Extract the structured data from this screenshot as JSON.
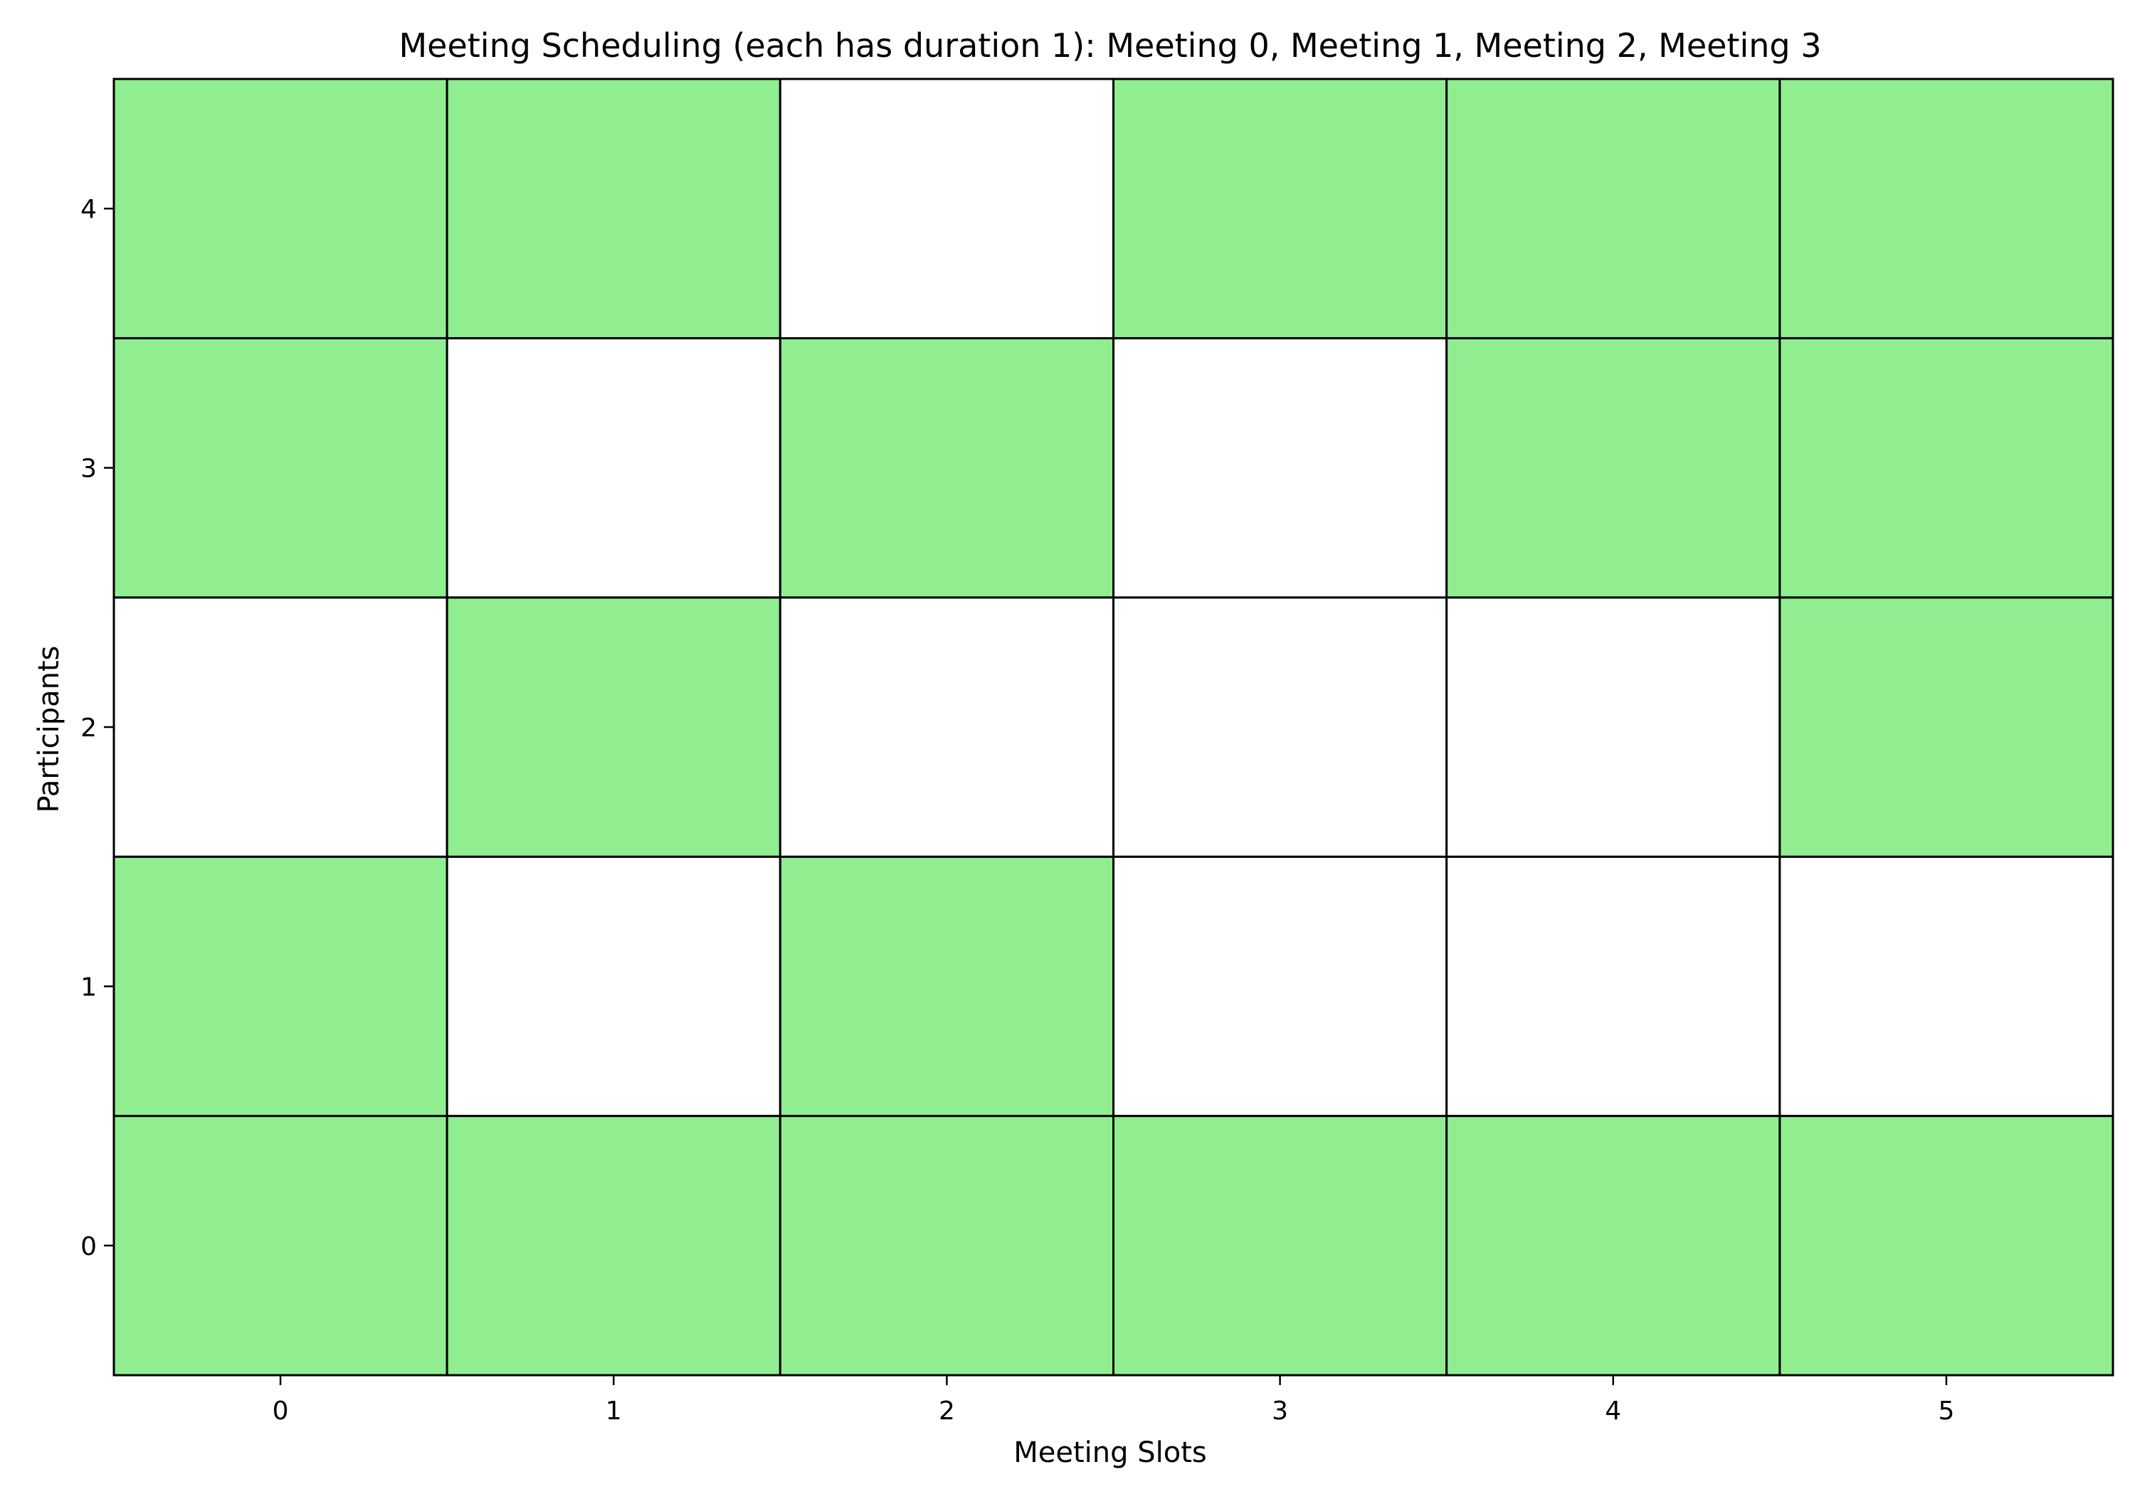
{
  "chart_data": {
    "type": "heatmap",
    "title": "Meeting Scheduling (each has duration 1): Meeting 0, Meeting 1, Meeting 2, Meeting 3",
    "xlabel": "Meeting Slots",
    "ylabel": "Participants",
    "x": [
      0,
      1,
      2,
      3,
      4,
      5
    ],
    "y": [
      0,
      1,
      2,
      3,
      4
    ],
    "x_tick_labels": [
      "0",
      "1",
      "2",
      "3",
      "4",
      "5"
    ],
    "y_tick_labels": [
      "0",
      "1",
      "2",
      "3",
      "4"
    ],
    "xlim": [
      -0.5,
      5.5
    ],
    "ylim": [
      -0.5,
      4.5
    ],
    "grid": false,
    "legend": "none",
    "available_color": "#90ee90",
    "unavailable_color": "#ffffff",
    "edge_color": "#000000",
    "availability": [
      [
        1,
        1,
        1,
        1,
        1,
        1
      ],
      [
        1,
        0,
        1,
        0,
        0,
        0
      ],
      [
        0,
        1,
        0,
        0,
        0,
        1
      ],
      [
        1,
        0,
        1,
        0,
        1,
        1
      ],
      [
        1,
        1,
        0,
        1,
        1,
        1
      ]
    ]
  }
}
